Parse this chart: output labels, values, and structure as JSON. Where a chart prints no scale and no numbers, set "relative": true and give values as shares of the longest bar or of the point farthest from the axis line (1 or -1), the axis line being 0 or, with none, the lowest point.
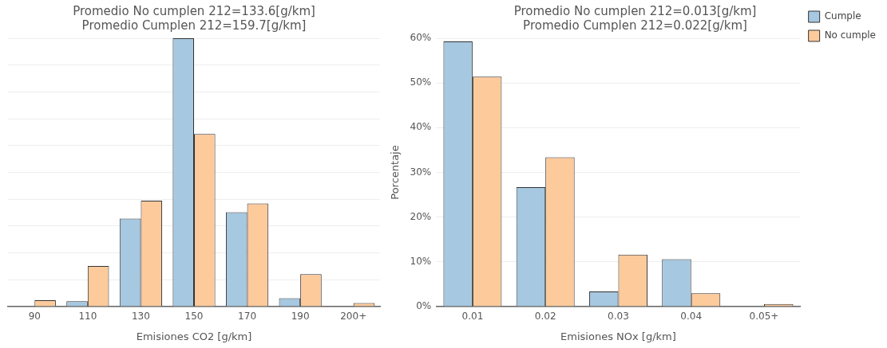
{
  "chart_data": [
    {
      "type": "bar",
      "title": "Promedio No cumplen 212=133.6[g/km]",
      "subtitle": "Promedio Cumplen 212=159.7[g/km]",
      "xlabel": "Emisiones CO2 [g/km]",
      "categories": [
        "90",
        "110",
        "130",
        "150",
        "170",
        "190",
        "200+"
      ],
      "relative": true,
      "series": [
        {
          "color": "#a6c8e0",
          "values": [
            0,
            0.02,
            0.328,
            1,
            0.352,
            0.031,
            0
          ]
        },
        {
          "color": "#fdca9c",
          "values": [
            0.024,
            0.151,
            0.395,
            0.643,
            0.384,
            0.121,
            0.013
          ]
        }
      ],
      "grid": "y",
      "legend": false,
      "tick_labels": "x"
    },
    {
      "type": "bar",
      "title": "Promedio No cumplen 212=0.013[g/km]",
      "subtitle": "Promedio Cumplen 212=0.022[g/km]",
      "xlabel": "Emisiones NOx [g/km]",
      "ylabel": "Porcentaje",
      "categories": [
        "0.01",
        "0.02",
        "0.03",
        "0.04",
        "0.05+"
      ],
      "series": [
        {
          "name": "Cumple",
          "color": "#a6c8e0",
          "values": [
            59.3,
            26.7,
            3.4,
            10.6,
            0
          ]
        },
        {
          "name": "No cumple",
          "color": "#fdca9c",
          "values": [
            51.4,
            33.4,
            11.6,
            3.0,
            0.6
          ]
        }
      ],
      "ylim": [
        0,
        60
      ],
      "yticks": [
        {
          "value": 0,
          "label": "0%"
        },
        {
          "value": 10,
          "label": "10%"
        },
        {
          "value": 20,
          "label": "20%"
        },
        {
          "value": 30,
          "label": "30%"
        },
        {
          "value": 40,
          "label": "40%"
        },
        {
          "value": 50,
          "label": "50%"
        },
        {
          "value": 60,
          "label": "60%"
        }
      ],
      "grid": "y",
      "legend": "top right"
    }
  ]
}
